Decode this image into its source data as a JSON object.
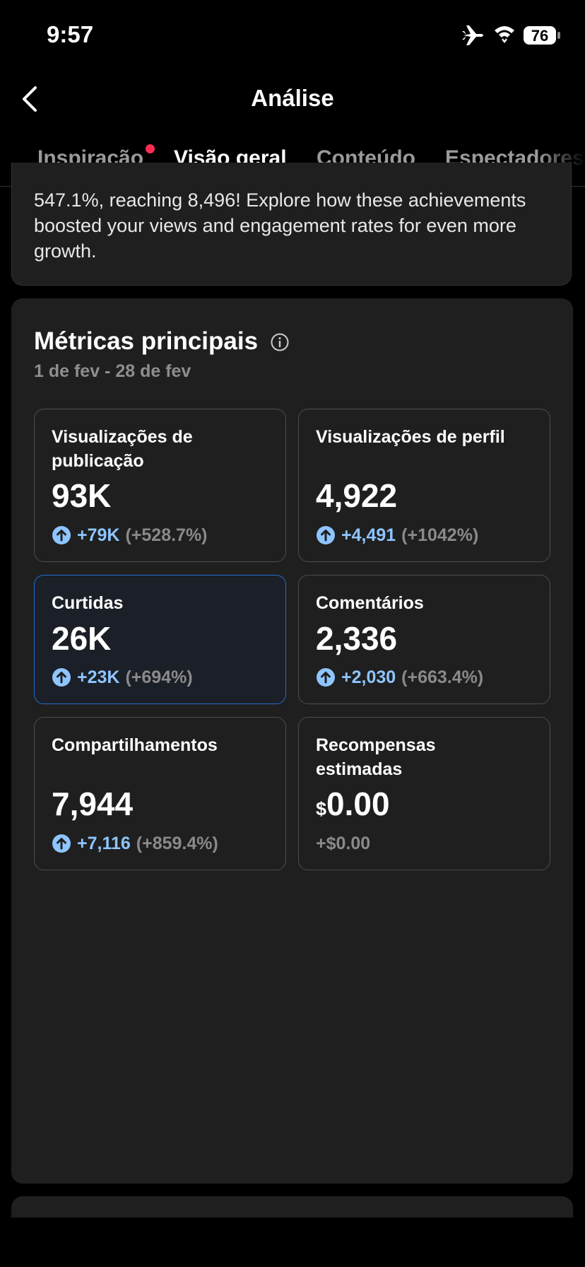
{
  "status_bar": {
    "time": "9:57",
    "battery": "76"
  },
  "header": {
    "title": "Análise"
  },
  "tabs": [
    {
      "label": "Inspiração",
      "badge": true
    },
    {
      "label": "Visão geral",
      "active": true
    },
    {
      "label": "Conteúdo"
    },
    {
      "label": "Espectadores"
    }
  ],
  "intro": {
    "lines": [
      "547.1%, reaching 8,496! Explore how these achievements",
      "boosted your views and engagement rates for even more",
      "growth."
    ]
  },
  "metrics": {
    "title": "Métricas principais",
    "date_range": "1 de fev - 28 de fev",
    "cards": [
      {
        "label_lines": [
          "Visualizações de",
          "publicação"
        ],
        "value": "93K",
        "change": "+79K",
        "percent": "(+528.7%)"
      },
      {
        "label_lines": [
          "Visualizações de perfil"
        ],
        "value": "4,922",
        "change": "+4,491",
        "percent": "(+1042%)"
      },
      {
        "label_lines": [
          "Curtidas"
        ],
        "value": "26K",
        "change": "+23K",
        "percent": "(+694%)",
        "highlighted": true
      },
      {
        "label_lines": [
          "Comentários"
        ],
        "value": "2,336",
        "change": "+2,030",
        "percent": "(+663.4%)"
      },
      {
        "label_lines": [
          "Compartilhamentos"
        ],
        "value": "7,944",
        "change": "+7,116",
        "percent": "(+859.4%)"
      },
      {
        "label_lines": [
          "Recompensas",
          "estimadas"
        ],
        "currency": "$",
        "value": "0.00",
        "change": "+$0.00"
      }
    ]
  }
}
